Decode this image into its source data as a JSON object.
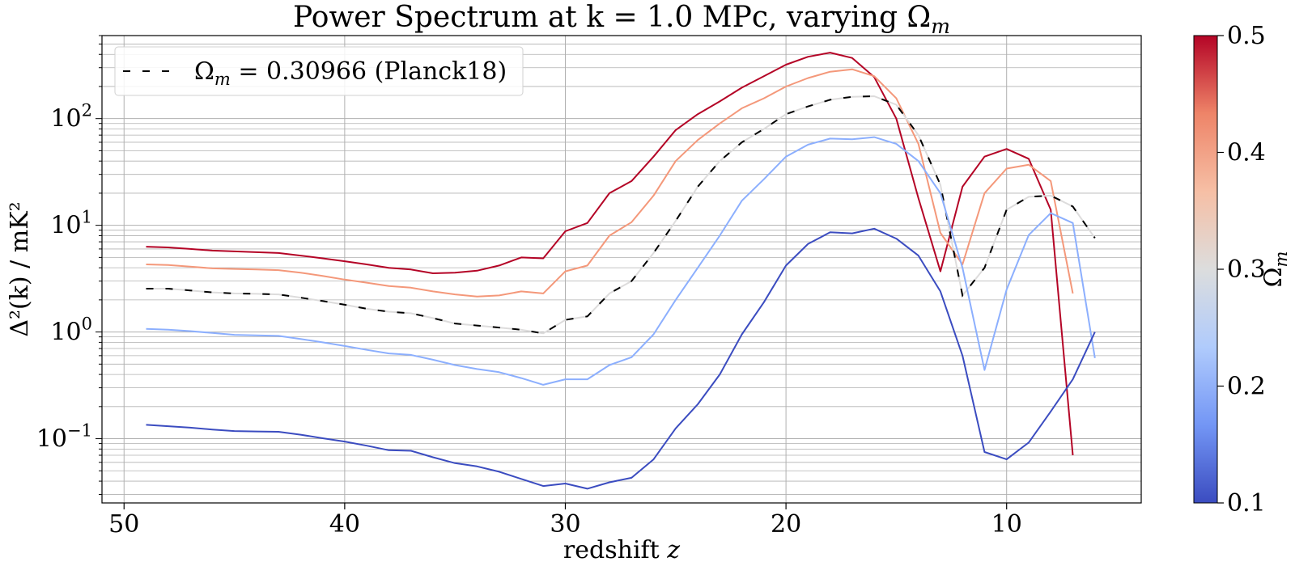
{
  "chart_data": {
    "type": "line",
    "title": "Power Spectrum at k = 1.0 MPc, varying Ω",
    "title_sub": "m",
    "xlabel": "redshift",
    "xlabel_var": "z",
    "ylabel": "Δ²(k) / mK²",
    "x_scale": "linear",
    "x_reversed": true,
    "xlim": [
      51.0,
      3.9
    ],
    "y_scale": "log",
    "ylim": [
      0.025,
      600
    ],
    "xticks": [
      50,
      40,
      30,
      20,
      10
    ],
    "yticks": [
      {
        "value": 0.1,
        "base": "10",
        "exp": "−1"
      },
      {
        "value": 1,
        "base": "10",
        "exp": "0"
      },
      {
        "value": 10,
        "base": "10",
        "exp": "1"
      },
      {
        "value": 100,
        "base": "10",
        "exp": "2"
      }
    ],
    "grid": true,
    "legend": {
      "position": "top-left",
      "label": "Ω",
      "label_sub": "m",
      "label_rest": " = 0.30966 (Planck18)"
    },
    "colorbar": {
      "label": "Ω",
      "label_sub": "m",
      "min": 0.1,
      "max": 0.5,
      "ticks": [
        "0.1",
        "0.2",
        "0.3",
        "0.4",
        "0.5"
      ],
      "colormap": "coolwarm",
      "colors": [
        "#3b4cc0",
        "#7396f5",
        "#b0cbfc",
        "#dcdddd",
        "#f6bfa5",
        "#ee8468",
        "#b40426"
      ]
    },
    "series": [
      {
        "omega_m": 0.5,
        "color": "#b40426",
        "style": "solid",
        "points": [
          [
            49,
            6.3
          ],
          [
            48,
            6.2
          ],
          [
            47,
            6.0
          ],
          [
            46,
            5.8
          ],
          [
            45,
            5.7
          ],
          [
            44,
            5.6
          ],
          [
            43,
            5.5
          ],
          [
            42,
            5.2
          ],
          [
            41,
            4.9
          ],
          [
            40,
            4.6
          ],
          [
            39,
            4.3
          ],
          [
            38,
            4.0
          ],
          [
            37,
            3.85
          ],
          [
            36,
            3.55
          ],
          [
            35,
            3.6
          ],
          [
            34,
            3.75
          ],
          [
            33,
            4.2
          ],
          [
            32,
            5.0
          ],
          [
            31,
            4.9
          ],
          [
            30,
            8.8
          ],
          [
            29,
            10.5
          ],
          [
            28,
            20
          ],
          [
            27,
            26
          ],
          [
            26,
            44
          ],
          [
            25,
            78
          ],
          [
            24,
            110
          ],
          [
            23,
            145
          ],
          [
            22,
            195
          ],
          [
            21,
            250
          ],
          [
            20,
            320
          ],
          [
            19,
            380
          ],
          [
            18,
            415
          ],
          [
            17,
            370
          ],
          [
            16,
            245
          ],
          [
            15,
            100
          ],
          [
            14,
            18
          ],
          [
            13,
            3.7
          ],
          [
            12,
            23
          ],
          [
            11,
            44
          ],
          [
            10,
            52
          ],
          [
            9,
            42
          ],
          [
            8,
            14
          ],
          [
            7,
            0.07
          ]
        ]
      },
      {
        "omega_m": 0.4,
        "color": "#f4987a",
        "style": "solid",
        "points": [
          [
            49,
            4.3
          ],
          [
            48,
            4.25
          ],
          [
            47,
            4.1
          ],
          [
            46,
            3.95
          ],
          [
            45,
            3.9
          ],
          [
            44,
            3.85
          ],
          [
            43,
            3.8
          ],
          [
            42,
            3.6
          ],
          [
            41,
            3.35
          ],
          [
            40,
            3.1
          ],
          [
            39,
            2.9
          ],
          [
            38,
            2.7
          ],
          [
            37,
            2.6
          ],
          [
            36,
            2.4
          ],
          [
            35,
            2.25
          ],
          [
            34,
            2.15
          ],
          [
            33,
            2.2
          ],
          [
            32,
            2.4
          ],
          [
            31,
            2.3
          ],
          [
            30,
            3.7
          ],
          [
            29,
            4.2
          ],
          [
            28,
            8
          ],
          [
            27,
            10.7
          ],
          [
            26,
            19
          ],
          [
            25,
            40
          ],
          [
            24,
            63
          ],
          [
            23,
            90
          ],
          [
            22,
            125
          ],
          [
            21,
            155
          ],
          [
            20,
            200
          ],
          [
            19,
            240
          ],
          [
            18,
            275
          ],
          [
            17,
            290
          ],
          [
            16,
            250
          ],
          [
            15,
            155
          ],
          [
            14,
            58
          ],
          [
            13,
            8.5
          ],
          [
            12,
            4.3
          ],
          [
            11,
            20
          ],
          [
            10,
            34
          ],
          [
            9,
            37
          ],
          [
            8,
            26
          ],
          [
            7,
            2.3
          ]
        ]
      },
      {
        "omega_m": 0.30966,
        "color": "#dddcdc",
        "style": "dashed",
        "points": [
          [
            49,
            2.55
          ],
          [
            48,
            2.55
          ],
          [
            47,
            2.45
          ],
          [
            46,
            2.35
          ],
          [
            45,
            2.3
          ],
          [
            44,
            2.28
          ],
          [
            43,
            2.25
          ],
          [
            42,
            2.1
          ],
          [
            41,
            1.95
          ],
          [
            40,
            1.8
          ],
          [
            39,
            1.65
          ],
          [
            38,
            1.55
          ],
          [
            37,
            1.5
          ],
          [
            36,
            1.35
          ],
          [
            35,
            1.2
          ],
          [
            34,
            1.15
          ],
          [
            33,
            1.1
          ],
          [
            32,
            1.05
          ],
          [
            31,
            0.97
          ],
          [
            30,
            1.3
          ],
          [
            29,
            1.4
          ],
          [
            28,
            2.3
          ],
          [
            27,
            3.0
          ],
          [
            26,
            5.5
          ],
          [
            25,
            11
          ],
          [
            24,
            23
          ],
          [
            23,
            40
          ],
          [
            22,
            60
          ],
          [
            21,
            80
          ],
          [
            20,
            110
          ],
          [
            19,
            130
          ],
          [
            18,
            150
          ],
          [
            17,
            160
          ],
          [
            16,
            162
          ],
          [
            15,
            135
          ],
          [
            14,
            70
          ],
          [
            13,
            24
          ],
          [
            12,
            2.2
          ],
          [
            11,
            4
          ],
          [
            10,
            14
          ],
          [
            9,
            18.5
          ],
          [
            8,
            19
          ],
          [
            7,
            15
          ],
          [
            6,
            7.6
          ]
        ]
      },
      {
        "omega_m": 0.2,
        "color": "#8caffe",
        "style": "solid",
        "points": [
          [
            49,
            1.07
          ],
          [
            48,
            1.05
          ],
          [
            47,
            1.02
          ],
          [
            46,
            0.98
          ],
          [
            45,
            0.94
          ],
          [
            44,
            0.93
          ],
          [
            43,
            0.92
          ],
          [
            42,
            0.86
          ],
          [
            41,
            0.8
          ],
          [
            40,
            0.74
          ],
          [
            39,
            0.68
          ],
          [
            38,
            0.63
          ],
          [
            37,
            0.61
          ],
          [
            36,
            0.55
          ],
          [
            35,
            0.49
          ],
          [
            34,
            0.45
          ],
          [
            33,
            0.42
          ],
          [
            32,
            0.37
          ],
          [
            31,
            0.32
          ],
          [
            30,
            0.36
          ],
          [
            29,
            0.36
          ],
          [
            28,
            0.49
          ],
          [
            27,
            0.58
          ],
          [
            26,
            0.95
          ],
          [
            25,
            2
          ],
          [
            24,
            4
          ],
          [
            23,
            8
          ],
          [
            22,
            17
          ],
          [
            21,
            27
          ],
          [
            20,
            44
          ],
          [
            19,
            57
          ],
          [
            18,
            65
          ],
          [
            17,
            64
          ],
          [
            16,
            67
          ],
          [
            15,
            58
          ],
          [
            14,
            40
          ],
          [
            13,
            20
          ],
          [
            12,
            4
          ],
          [
            11,
            0.44
          ],
          [
            10,
            2.5
          ],
          [
            9,
            8.1
          ],
          [
            8,
            13
          ],
          [
            7,
            10.5
          ],
          [
            6,
            0.57
          ]
        ]
      },
      {
        "omega_m": 0.1,
        "color": "#3b4cc0",
        "style": "solid",
        "points": [
          [
            49,
            0.135
          ],
          [
            48,
            0.131
          ],
          [
            47,
            0.127
          ],
          [
            46,
            0.122
          ],
          [
            45,
            0.118
          ],
          [
            44,
            0.117
          ],
          [
            43,
            0.116
          ],
          [
            42,
            0.109
          ],
          [
            41,
            0.101
          ],
          [
            40,
            0.094
          ],
          [
            39,
            0.086
          ],
          [
            38,
            0.078
          ],
          [
            37,
            0.077
          ],
          [
            36,
            0.067
          ],
          [
            35,
            0.059
          ],
          [
            34,
            0.055
          ],
          [
            33,
            0.049
          ],
          [
            32,
            0.042
          ],
          [
            31,
            0.036
          ],
          [
            30,
            0.038
          ],
          [
            29,
            0.034
          ],
          [
            28,
            0.039
          ],
          [
            27,
            0.043
          ],
          [
            26,
            0.064
          ],
          [
            25,
            0.125
          ],
          [
            24,
            0.21
          ],
          [
            23,
            0.4
          ],
          [
            22,
            0.95
          ],
          [
            21,
            1.9
          ],
          [
            20,
            4.2
          ],
          [
            19,
            6.7
          ],
          [
            18,
            8.6
          ],
          [
            17,
            8.4
          ],
          [
            16,
            9.3
          ],
          [
            15,
            7.5
          ],
          [
            14,
            5.2
          ],
          [
            13,
            2.4
          ],
          [
            12,
            0.6
          ],
          [
            11,
            0.075
          ],
          [
            10,
            0.064
          ],
          [
            9,
            0.092
          ],
          [
            8,
            0.18
          ],
          [
            7,
            0.36
          ],
          [
            6,
            1.0
          ]
        ]
      }
    ]
  }
}
